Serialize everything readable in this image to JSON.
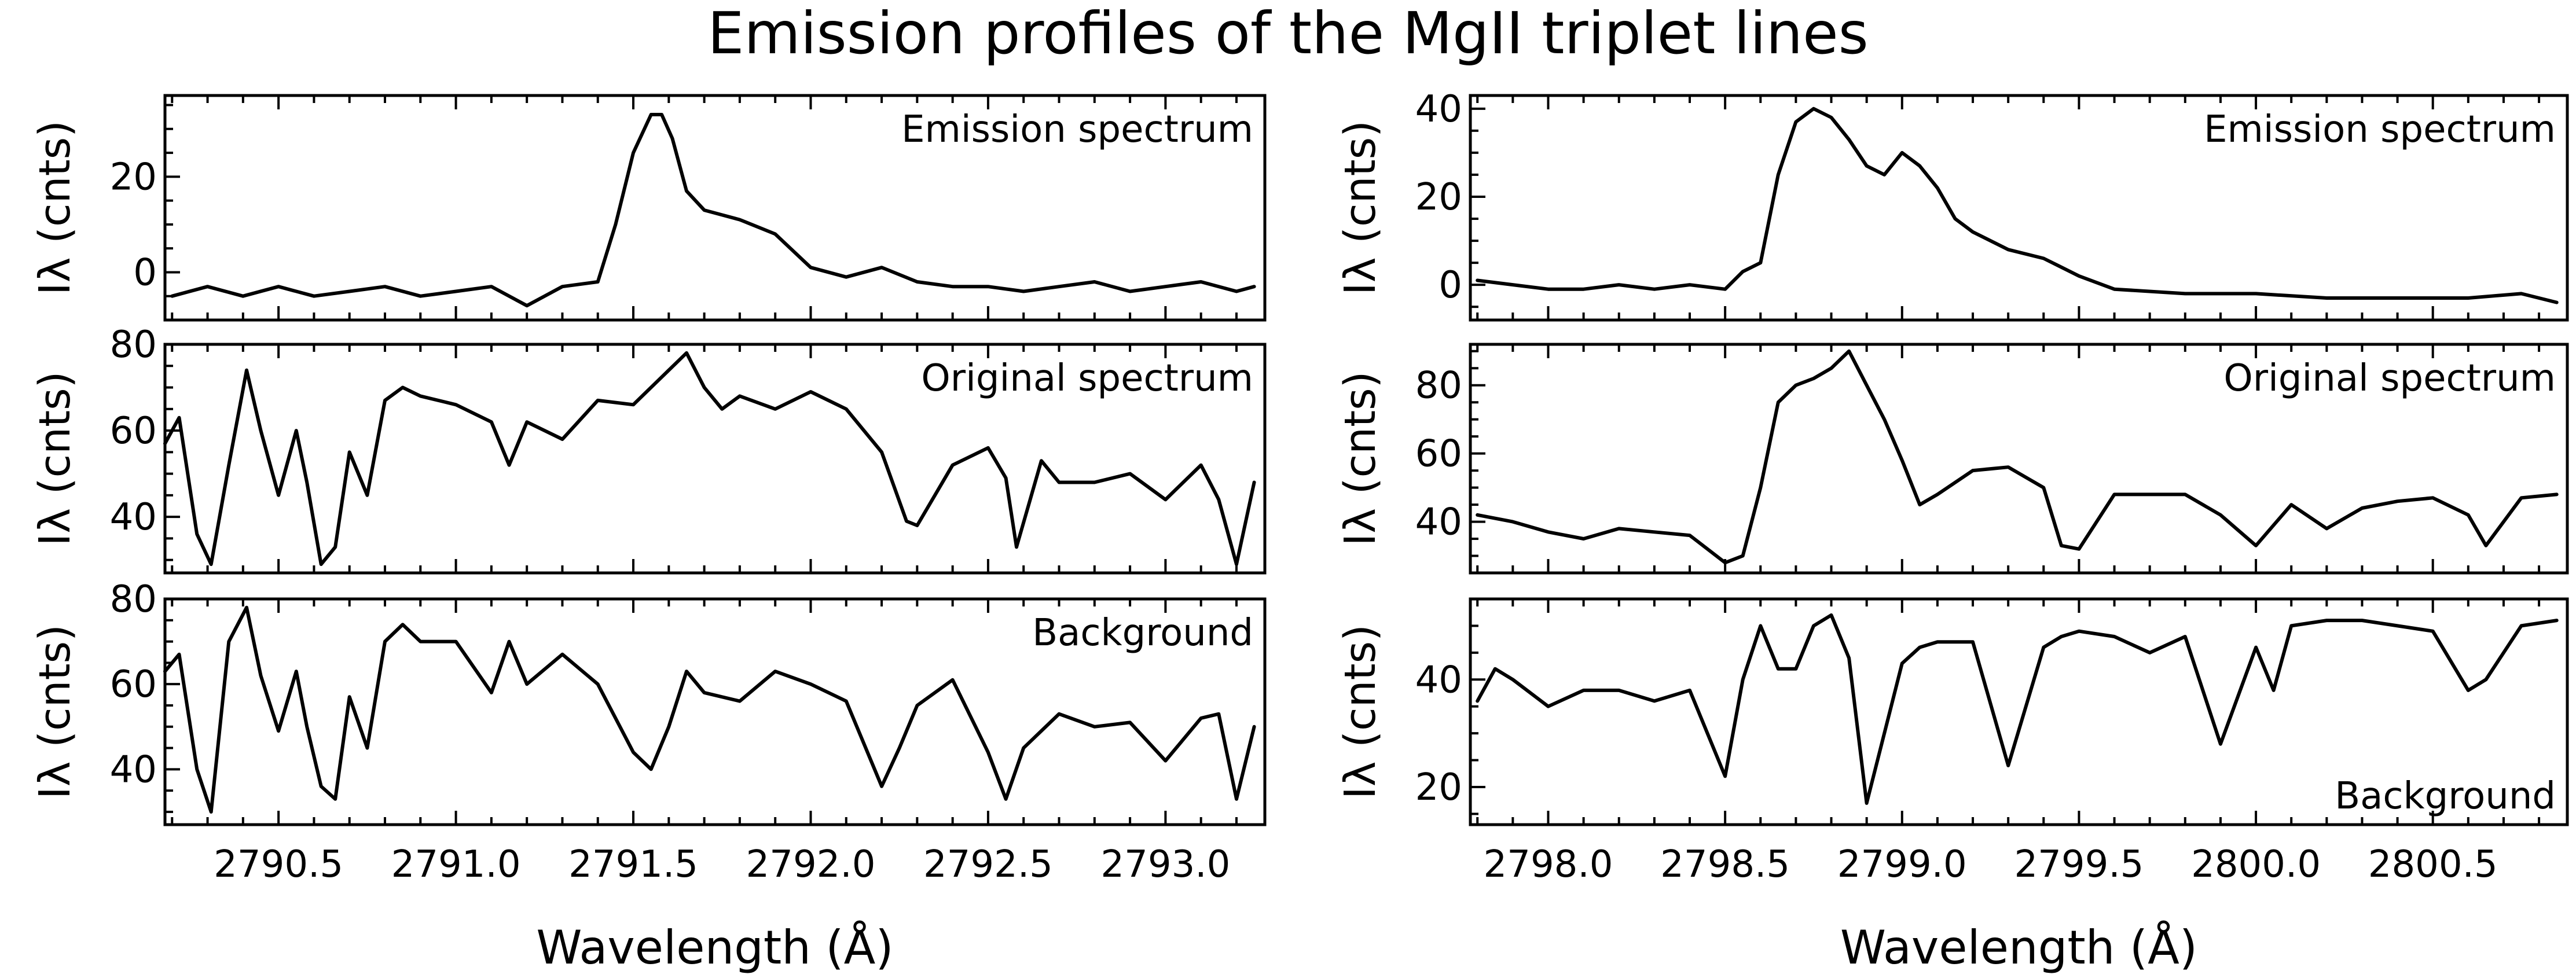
{
  "chart_data": [
    {
      "type": "line",
      "title": "Emission spectrum",
      "ylabel": "Iλ (cnts)",
      "xlim": [
        2790.18,
        2793.28
      ],
      "ylim": [
        -10,
        37
      ],
      "yticks": [
        0,
        20
      ],
      "xticks": [],
      "xlabel": "",
      "x": [
        2790.2,
        2790.3,
        2790.4,
        2790.5,
        2790.6,
        2790.7,
        2790.8,
        2790.9,
        2791.0,
        2791.1,
        2791.2,
        2791.3,
        2791.4,
        2791.45,
        2791.5,
        2791.55,
        2791.58,
        2791.61,
        2791.65,
        2791.7,
        2791.75,
        2791.8,
        2791.9,
        2792.0,
        2792.1,
        2792.2,
        2792.3,
        2792.4,
        2792.5,
        2792.6,
        2792.7,
        2792.8,
        2792.9,
        2793.0,
        2793.1,
        2793.2,
        2793.25
      ],
      "series": [
        {
          "values": [
            -5,
            -3,
            -5,
            -3,
            -5,
            -4,
            -3,
            -5,
            -4,
            -3,
            -7,
            -3,
            -2,
            10,
            25,
            33,
            33,
            28,
            17,
            13,
            12,
            11,
            8,
            1,
            -1,
            1,
            -2,
            -3,
            -3,
            -4,
            -3,
            -2,
            -4,
            -3,
            -2,
            -4,
            -3
          ]
        }
      ]
    },
    {
      "type": "line",
      "title": "Original spectrum",
      "ylabel": "Iλ (cnts)",
      "xlim": [
        2790.18,
        2793.28
      ],
      "ylim": [
        27,
        80
      ],
      "yticks": [
        40,
        60,
        80
      ],
      "xticks": [],
      "xlabel": "",
      "x": [
        2790.18,
        2790.22,
        2790.27,
        2790.31,
        2790.36,
        2790.41,
        2790.45,
        2790.5,
        2790.55,
        2790.58,
        2790.62,
        2790.66,
        2790.7,
        2790.75,
        2790.8,
        2790.85,
        2790.9,
        2791.0,
        2791.1,
        2791.15,
        2791.2,
        2791.3,
        2791.4,
        2791.5,
        2791.6,
        2791.65,
        2791.7,
        2791.75,
        2791.8,
        2791.9,
        2792.0,
        2792.1,
        2792.2,
        2792.27,
        2792.3,
        2792.4,
        2792.5,
        2792.55,
        2792.58,
        2792.65,
        2792.7,
        2792.8,
        2792.9,
        2793.0,
        2793.1,
        2793.15,
        2793.2,
        2793.25
      ],
      "series": [
        {
          "values": [
            57,
            63,
            36,
            29,
            52,
            74,
            60,
            45,
            60,
            48,
            29,
            33,
            55,
            45,
            67,
            70,
            68,
            66,
            62,
            52,
            62,
            58,
            67,
            66,
            74,
            78,
            70,
            65,
            68,
            65,
            69,
            65,
            55,
            39,
            38,
            52,
            56,
            49,
            33,
            53,
            48,
            48,
            50,
            44,
            52,
            44,
            29,
            48
          ]
        }
      ]
    },
    {
      "type": "line",
      "title": "Background",
      "ylabel": "Iλ (cnts)",
      "xlim": [
        2790.18,
        2793.28
      ],
      "ylim": [
        27,
        80
      ],
      "yticks": [
        40,
        60,
        80
      ],
      "xticks": [
        "2790.5",
        "2791.0",
        "2791.5",
        "2792.0",
        "2792.5",
        "2793.0"
      ],
      "xlabel": "Wavelength  (Å)",
      "x": [
        2790.18,
        2790.22,
        2790.27,
        2790.31,
        2790.36,
        2790.41,
        2790.45,
        2790.5,
        2790.55,
        2790.58,
        2790.62,
        2790.66,
        2790.7,
        2790.75,
        2790.8,
        2790.85,
        2790.9,
        2791.0,
        2791.1,
        2791.15,
        2791.2,
        2791.3,
        2791.4,
        2791.5,
        2791.55,
        2791.6,
        2791.65,
        2791.7,
        2791.8,
        2791.9,
        2792.0,
        2792.1,
        2792.2,
        2792.25,
        2792.3,
        2792.4,
        2792.5,
        2792.55,
        2792.6,
        2792.7,
        2792.8,
        2792.9,
        2793.0,
        2793.1,
        2793.15,
        2793.2,
        2793.25
      ],
      "series": [
        {
          "values": [
            63,
            67,
            40,
            30,
            70,
            78,
            62,
            49,
            63,
            50,
            36,
            33,
            57,
            45,
            70,
            74,
            70,
            70,
            58,
            70,
            60,
            67,
            60,
            44,
            40,
            50,
            63,
            58,
            56,
            63,
            60,
            56,
            36,
            45,
            55,
            61,
            44,
            33,
            45,
            53,
            50,
            51,
            42,
            52,
            53,
            33,
            50
          ]
        }
      ]
    },
    {
      "type": "line",
      "title": "Emission spectrum",
      "ylabel": "Iλ (cnts)",
      "xlim": [
        2797.78,
        2800.88
      ],
      "ylim": [
        -8,
        43
      ],
      "yticks": [
        0,
        20,
        40
      ],
      "xticks": [],
      "xlabel": "",
      "x": [
        2797.8,
        2797.9,
        2798.0,
        2798.1,
        2798.2,
        2798.3,
        2798.4,
        2798.5,
        2798.55,
        2798.6,
        2798.65,
        2798.7,
        2798.75,
        2798.8,
        2798.85,
        2798.9,
        2798.95,
        2799.0,
        2799.05,
        2799.1,
        2799.15,
        2799.2,
        2799.3,
        2799.4,
        2799.5,
        2799.6,
        2799.8,
        2800.0,
        2800.2,
        2800.4,
        2800.6,
        2800.75,
        2800.8,
        2800.85
      ],
      "series": [
        {
          "values": [
            1,
            0,
            -1,
            -1,
            0,
            -1,
            0,
            -1,
            3,
            5,
            25,
            37,
            40,
            38,
            33,
            27,
            25,
            30,
            27,
            22,
            15,
            12,
            8,
            6,
            2,
            -1,
            -2,
            -2,
            -3,
            -3,
            -3,
            -2,
            -3,
            -4
          ]
        }
      ]
    },
    {
      "type": "line",
      "title": "Original spectrum",
      "ylabel": "Iλ (cnts)",
      "xlim": [
        2797.78,
        2800.88
      ],
      "ylim": [
        25,
        92
      ],
      "yticks": [
        40,
        60,
        80
      ],
      "xticks": [],
      "xlabel": "",
      "x": [
        2797.8,
        2797.9,
        2798.0,
        2798.1,
        2798.2,
        2798.3,
        2798.4,
        2798.5,
        2798.55,
        2798.6,
        2798.65,
        2798.7,
        2798.75,
        2798.8,
        2798.85,
        2798.9,
        2798.95,
        2799.0,
        2799.05,
        2799.1,
        2799.2,
        2799.3,
        2799.4,
        2799.45,
        2799.5,
        2799.6,
        2799.8,
        2799.9,
        2800.0,
        2800.1,
        2800.2,
        2800.3,
        2800.4,
        2800.5,
        2800.6,
        2800.65,
        2800.75,
        2800.85
      ],
      "series": [
        {
          "values": [
            42,
            40,
            37,
            35,
            38,
            37,
            36,
            28,
            30,
            50,
            75,
            80,
            82,
            85,
            90,
            80,
            70,
            58,
            45,
            48,
            55,
            56,
            50,
            33,
            32,
            48,
            48,
            42,
            33,
            45,
            38,
            44,
            46,
            47,
            42,
            33,
            47,
            48
          ]
        }
      ]
    },
    {
      "type": "line",
      "title": "Background",
      "ylabel": "Iλ (cnts)",
      "xlim": [
        2797.78,
        2800.88
      ],
      "ylim": [
        13,
        55
      ],
      "yticks": [
        20,
        40
      ],
      "xticks": [
        "2798.0",
        "2798.5",
        "2799.0",
        "2799.5",
        "2800.0",
        "2800.5"
      ],
      "xlabel": "Wavelength  (Å)",
      "x": [
        2797.8,
        2797.85,
        2797.9,
        2798.0,
        2798.1,
        2798.2,
        2798.3,
        2798.4,
        2798.5,
        2798.55,
        2798.6,
        2798.65,
        2798.7,
        2798.75,
        2798.8,
        2798.85,
        2798.9,
        2798.95,
        2799.0,
        2799.05,
        2799.1,
        2799.2,
        2799.3,
        2799.4,
        2799.45,
        2799.5,
        2799.6,
        2799.7,
        2799.8,
        2799.9,
        2800.0,
        2800.05,
        2800.1,
        2800.2,
        2800.3,
        2800.4,
        2800.5,
        2800.6,
        2800.65,
        2800.75,
        2800.85
      ],
      "series": [
        {
          "values": [
            36,
            42,
            40,
            35,
            38,
            38,
            36,
            38,
            22,
            40,
            50,
            42,
            42,
            50,
            52,
            44,
            17,
            30,
            43,
            46,
            47,
            47,
            24,
            46,
            48,
            49,
            48,
            45,
            48,
            28,
            46,
            38,
            50,
            51,
            51,
            50,
            49,
            38,
            40,
            50,
            51
          ]
        }
      ]
    }
  ],
  "figure": {
    "title": "Emission profiles of the MgII triplet lines"
  }
}
